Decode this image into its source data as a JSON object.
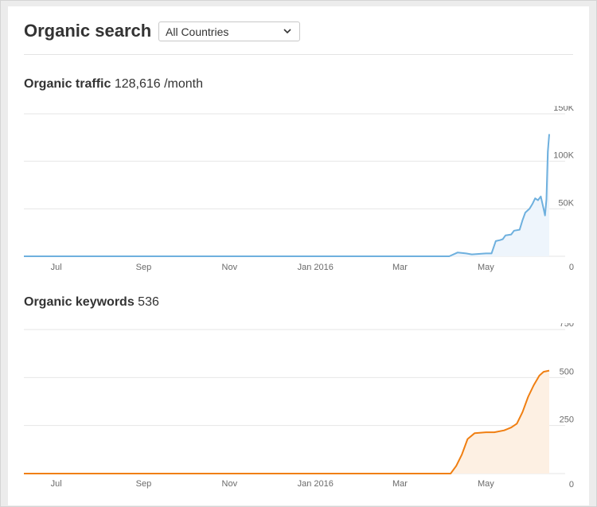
{
  "header": {
    "title": "Organic search",
    "country_select": "All Countries"
  },
  "traffic": {
    "label": "Organic traffic",
    "value": "128,616 /month"
  },
  "keywords": {
    "label": "Organic keywords",
    "value": "536"
  },
  "colors": {
    "traffic_line": "#6eb0de",
    "traffic_fill": "#eef5fc",
    "keywords_line": "#f07f12",
    "keywords_fill": "#fdf0e3",
    "grid": "#e6e6e6"
  },
  "chart_data": [
    {
      "type": "area",
      "title": "Organic traffic",
      "x_tick_labels": [
        "Jul",
        "Sep",
        "Nov",
        "Jan 2016",
        "Mar",
        "May"
      ],
      "x_ticks": [
        "2015-07-01",
        "2015-09-01",
        "2015-11-01",
        "2016-01-01",
        "2016-03-01",
        "2016-05-01"
      ],
      "x_range": [
        "2015-06-08",
        "2016-06-15"
      ],
      "y_tick_labels": [
        "0",
        "50K",
        "100K",
        "150K"
      ],
      "ylim": [
        0,
        150000
      ],
      "grid": true,
      "series": [
        {
          "x": [
            "2015-06-08",
            "2016-04-05",
            "2016-04-11",
            "2016-04-17",
            "2016-04-21",
            "2016-05-01",
            "2016-05-05",
            "2016-05-08",
            "2016-05-11",
            "2016-05-13",
            "2016-05-15",
            "2016-05-19",
            "2016-05-21",
            "2016-05-25",
            "2016-05-27",
            "2016-05-29",
            "2016-06-01",
            "2016-06-03",
            "2016-06-05",
            "2016-06-07",
            "2016-06-09",
            "2016-06-11",
            "2016-06-12",
            "2016-06-13",
            "2016-06-14",
            "2016-06-15"
          ],
          "y": [
            0,
            0,
            4000,
            3000,
            2000,
            3000,
            3000,
            16000,
            17000,
            18000,
            22000,
            23000,
            27000,
            28000,
            38000,
            46000,
            50000,
            55000,
            61000,
            59000,
            63000,
            50000,
            43000,
            60000,
            110000,
            128616
          ]
        }
      ]
    },
    {
      "type": "area",
      "title": "Organic keywords",
      "x_tick_labels": [
        "Jul",
        "Sep",
        "Nov",
        "Jan 2016",
        "Mar",
        "May"
      ],
      "x_ticks": [
        "2015-07-01",
        "2015-09-01",
        "2015-11-01",
        "2016-01-01",
        "2016-03-01",
        "2016-05-01"
      ],
      "x_range": [
        "2015-06-08",
        "2016-06-15"
      ],
      "y_tick_labels": [
        "0",
        "250",
        "500",
        "750"
      ],
      "ylim": [
        0,
        750
      ],
      "grid": true,
      "series": [
        {
          "x": [
            "2015-06-08",
            "2016-04-06",
            "2016-04-10",
            "2016-04-14",
            "2016-04-18",
            "2016-04-23",
            "2016-05-01",
            "2016-05-07",
            "2016-05-14",
            "2016-05-19",
            "2016-05-23",
            "2016-05-27",
            "2016-05-31",
            "2016-06-04",
            "2016-06-08",
            "2016-06-11",
            "2016-06-15"
          ],
          "y": [
            0,
            0,
            40,
            100,
            180,
            210,
            215,
            215,
            225,
            240,
            260,
            320,
            400,
            460,
            510,
            530,
            536
          ]
        }
      ]
    }
  ]
}
